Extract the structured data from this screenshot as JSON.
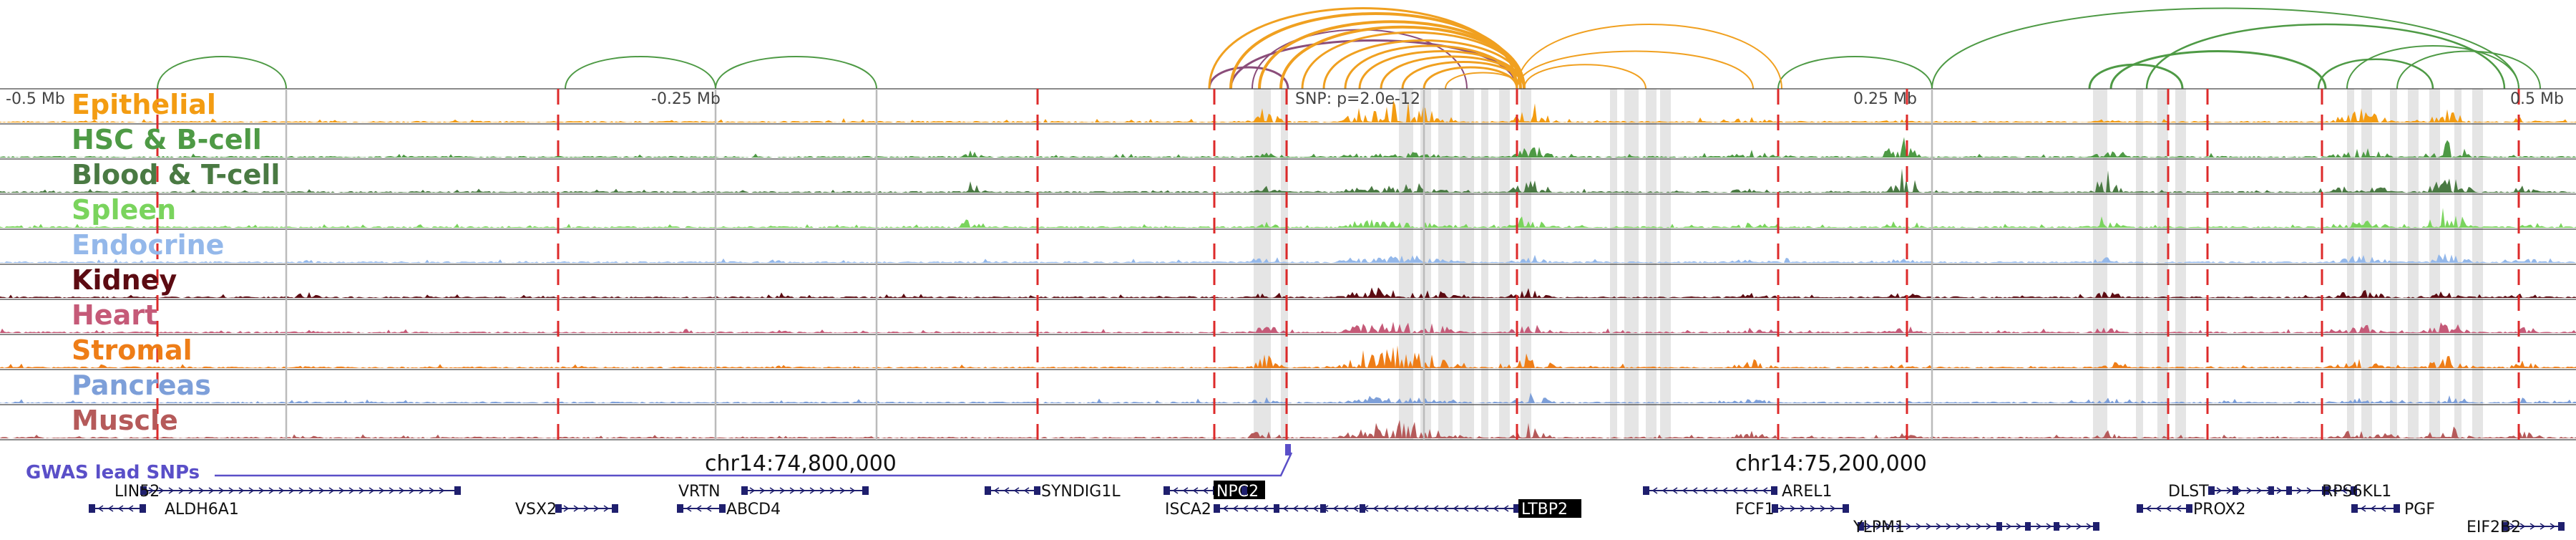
{
  "axis": {
    "ticks": [
      "-0.5 Mb",
      "-0.25 Mb",
      "0.25 Mb",
      "0.5 Mb"
    ],
    "snp_label": "SNP: p=2.0e-12",
    "coords": [
      "chr14:74,800,000",
      "chr14:75,200,000"
    ]
  },
  "tracks": [
    {
      "name": "Epithelial",
      "color": "#f39c12"
    },
    {
      "name": "HSC & B-cell",
      "color": "#4e9a45"
    },
    {
      "name": "Blood & T-cell",
      "color": "#4a7a43"
    },
    {
      "name": "Spleen",
      "color": "#7ad45d"
    },
    {
      "name": "Endocrine",
      "color": "#94b8ea"
    },
    {
      "name": "Kidney",
      "color": "#5c0b12"
    },
    {
      "name": "Heart",
      "color": "#c55a78"
    },
    {
      "name": "Stromal",
      "color": "#ee7d17"
    },
    {
      "name": "Pancreas",
      "color": "#7d9fd9"
    },
    {
      "name": "Muscle",
      "color": "#b55a5a"
    }
  ],
  "gwas_label": "GWAS lead SNPs",
  "genes": [
    {
      "name": "LIN52"
    },
    {
      "name": "ALDH6A1"
    },
    {
      "name": "VSX2"
    },
    {
      "name": "VRTN"
    },
    {
      "name": "ABCD4"
    },
    {
      "name": "SYNDIG1L"
    },
    {
      "name": "NPC2"
    },
    {
      "name": "ISCA2"
    },
    {
      "name": "LTBP2"
    },
    {
      "name": "AREL1"
    },
    {
      "name": "FCF1"
    },
    {
      "name": "YLPM1"
    },
    {
      "name": "DLST"
    },
    {
      "name": "RPS6KL1"
    },
    {
      "name": "PROX2"
    },
    {
      "name": "PGF"
    },
    {
      "name": "EIF2B2"
    }
  ],
  "colors": {
    "loop_green": "#4e9a45",
    "loop_orange": "#f0a020",
    "loop_purple": "#8b4d7a",
    "snp_line": "#dd2a2a",
    "gene": "#1f1f6e",
    "gwas": "#5a4fc8"
  }
}
